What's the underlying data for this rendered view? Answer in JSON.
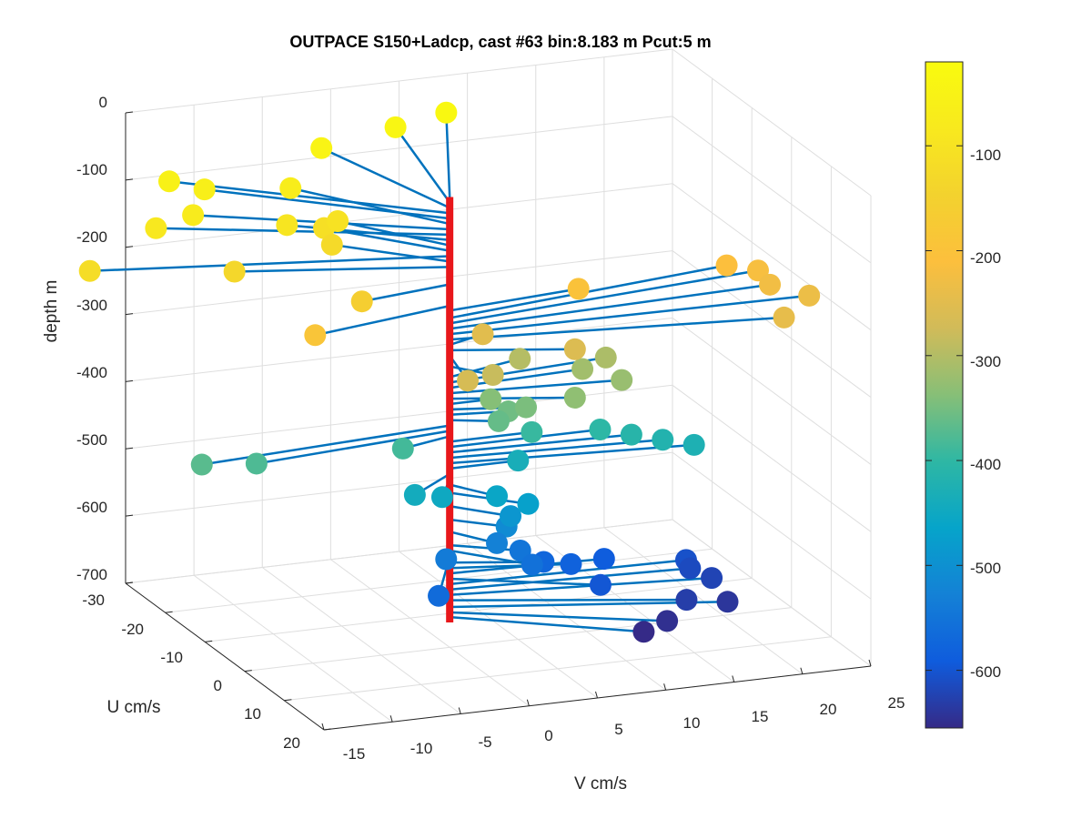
{
  "chart_data": {
    "type": "scatter",
    "subtype": "3d-stem-profile",
    "title": "OUTPACE S150+Ladcp, cast #63 bin:8.183 m  Pcut:5 m",
    "xlabel": "V cm/s",
    "ylabel": "U cm/s",
    "zlabel": "depth m",
    "x_ticks": [
      "-15",
      "-10",
      "-5",
      "0",
      "5",
      "10",
      "15",
      "20",
      "25"
    ],
    "y_ticks": [
      "-30",
      "-20",
      "-10",
      "0",
      "10",
      "20"
    ],
    "z_ticks": [
      "0",
      "-100",
      "-200",
      "-300",
      "-400",
      "-500",
      "-600",
      "-700"
    ],
    "xlim": [
      -15,
      25
    ],
    "ylim": [
      -30,
      20
    ],
    "zlim": [
      -700,
      0
    ],
    "grid": true,
    "colormap": "parula",
    "colorbar": {
      "location": "right",
      "ticks": [
        "-100",
        "-200",
        "-300",
        "-400",
        "-500",
        "-600"
      ],
      "clim": [
        -655,
        -20
      ]
    },
    "stem_color": "#0072bd",
    "axis_line_color": "#e8171b",
    "points": [
      {
        "depth": -30,
        "v": 7,
        "u": -25
      },
      {
        "depth": -38,
        "v": 3,
        "u": -24
      },
      {
        "depth": -46,
        "v": -3,
        "u": -22
      },
      {
        "depth": -54,
        "v": -15,
        "u": -19
      },
      {
        "depth": -62,
        "v": -13,
        "u": -17
      },
      {
        "depth": -70,
        "v": -7,
        "u": -16
      },
      {
        "depth": -78,
        "v": -15,
        "u": -13
      },
      {
        "depth": -86,
        "v": -18,
        "u": -12
      },
      {
        "depth": -94,
        "v": -9,
        "u": -10
      },
      {
        "depth": -102,
        "v": -5,
        "u": -11
      },
      {
        "depth": -110,
        "v": -6,
        "u": -11
      },
      {
        "depth": -118,
        "v": -24,
        "u": -8
      },
      {
        "depth": -126,
        "v": -6,
        "u": -9
      },
      {
        "depth": -134,
        "v": -14,
        "u": -6
      },
      {
        "depth": -160,
        "v": -7,
        "u": 2
      },
      {
        "depth": -192,
        "v": -11,
        "u": 4
      },
      {
        "depth": -199,
        "v": 10,
        "u": -2
      },
      {
        "depth": -210,
        "v": 22,
        "u": -6
      },
      {
        "depth": -218,
        "v": 24,
        "u": -5
      },
      {
        "depth": -226,
        "v": 24,
        "u": -2
      },
      {
        "depth": -234,
        "v": 26,
        "u": 1
      },
      {
        "depth": -242,
        "v": 23,
        "u": 5
      },
      {
        "depth": -250,
        "v": 3,
        "u": -2
      },
      {
        "depth": -258,
        "v": 8,
        "u": 4
      },
      {
        "depth": -266,
        "v": -1,
        "u": 8
      },
      {
        "depth": -282,
        "v": 2,
        "u": 4
      },
      {
        "depth": -298,
        "v": 6,
        "u": -3
      },
      {
        "depth": -306,
        "v": 12,
        "u": -2
      },
      {
        "depth": -314,
        "v": 10,
        "u": -1
      },
      {
        "depth": -322,
        "v": 12,
        "u": 2
      },
      {
        "depth": -330,
        "v": 8,
        "u": 4
      },
      {
        "depth": -338,
        "v": 3,
        "u": 0
      },
      {
        "depth": -346,
        "v": 5,
        "u": 2
      },
      {
        "depth": -354,
        "v": 4,
        "u": 1
      },
      {
        "depth": -362,
        "v": 3,
        "u": 2
      },
      {
        "depth": -370,
        "v": -19,
        "u": 3
      },
      {
        "depth": -378,
        "v": -15,
        "u": 3
      },
      {
        "depth": -386,
        "v": -4,
        "u": 2
      },
      {
        "depth": -394,
        "v": 6,
        "u": 0
      },
      {
        "depth": -402,
        "v": 11,
        "u": 0
      },
      {
        "depth": -410,
        "v": 13,
        "u": 1
      },
      {
        "depth": -418,
        "v": 15,
        "u": 2
      },
      {
        "depth": -426,
        "v": 17,
        "u": 3
      },
      {
        "depth": -434,
        "v": 5,
        "u": 0
      },
      {
        "depth": -442,
        "v": -4,
        "u": 5
      },
      {
        "depth": -450,
        "v": -2,
        "u": 5
      },
      {
        "depth": -458,
        "v": 2,
        "u": 5
      },
      {
        "depth": -470,
        "v": 4,
        "u": 6
      },
      {
        "depth": -490,
        "v": 3,
        "u": 5
      },
      {
        "depth": -510,
        "v": 3,
        "u": 4
      },
      {
        "depth": -528,
        "v": 2,
        "u": 5
      },
      {
        "depth": -538,
        "v": -2,
        "u": 6
      },
      {
        "depth": -548,
        "v": 4,
        "u": 4
      },
      {
        "depth": -556,
        "v": 4,
        "u": 7
      },
      {
        "depth": -566,
        "v": -4,
        "u": 11
      },
      {
        "depth": -574,
        "v": 6,
        "u": 3
      },
      {
        "depth": -582,
        "v": 8,
        "u": 3
      },
      {
        "depth": -590,
        "v": 11,
        "u": 1
      },
      {
        "depth": -598,
        "v": 9,
        "u": 7
      },
      {
        "depth": -606,
        "v": 17,
        "u": 1
      },
      {
        "depth": -614,
        "v": 17,
        "u": 2
      },
      {
        "depth": -622,
        "v": 18,
        "u": 4
      },
      {
        "depth": -630,
        "v": 15,
        "u": 8
      },
      {
        "depth": -640,
        "v": 18,
        "u": 8
      },
      {
        "depth": -648,
        "v": 13,
        "u": 10
      },
      {
        "depth": -655,
        "v": 11,
        "u": 11
      }
    ]
  }
}
